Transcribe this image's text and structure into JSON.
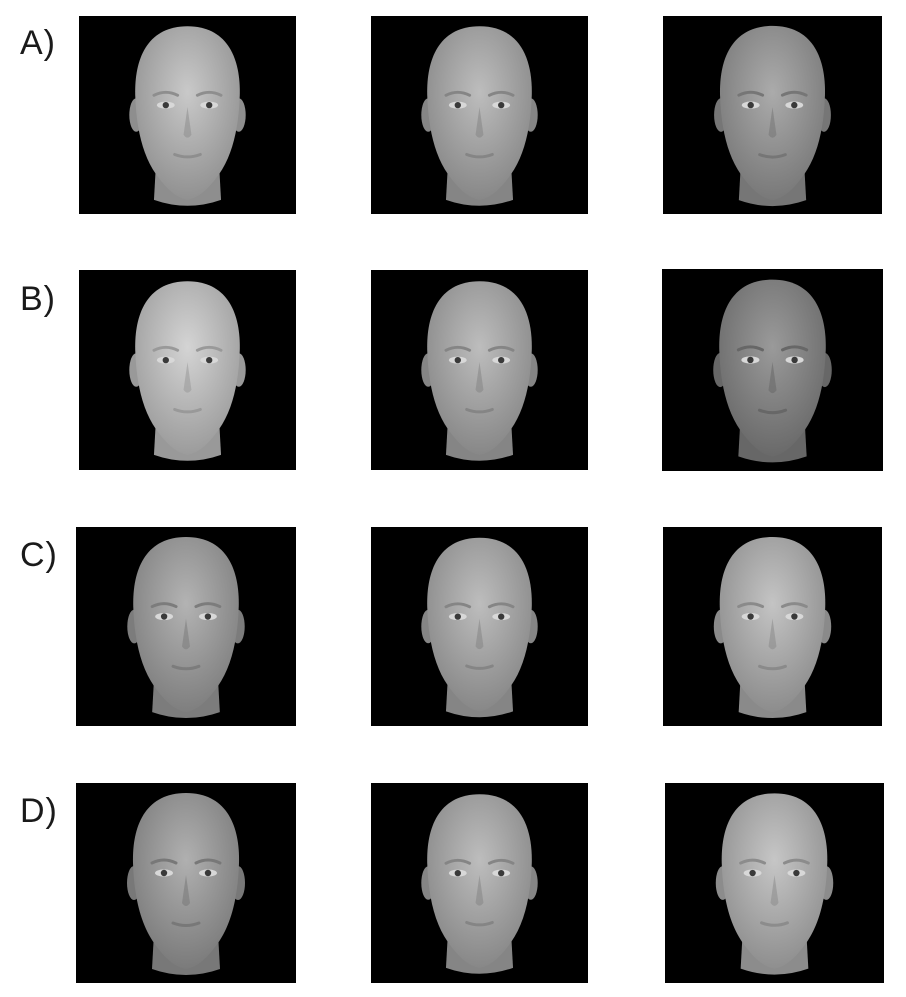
{
  "figure": {
    "rows": [
      {
        "label": "A)",
        "faces": [
          {
            "shade": "#c9c9c9",
            "shadow": "#8e8e8e"
          },
          {
            "shade": "#bdbdbd",
            "shadow": "#858585"
          },
          {
            "shade": "#ababab",
            "shadow": "#767676"
          }
        ]
      },
      {
        "label": "B)",
        "faces": [
          {
            "shade": "#d4d4d4",
            "shadow": "#999999"
          },
          {
            "shade": "#bdbdbd",
            "shadow": "#858585"
          },
          {
            "shade": "#9a9a9a",
            "shadow": "#676767"
          }
        ]
      },
      {
        "label": "C)",
        "faces": [
          {
            "shade": "#b3b3b3",
            "shadow": "#7c7c7c"
          },
          {
            "shade": "#bdbdbd",
            "shadow": "#858585"
          },
          {
            "shade": "#c4c4c4",
            "shadow": "#8a8a8a"
          }
        ]
      },
      {
        "label": "D)",
        "faces": [
          {
            "shade": "#b0b0b0",
            "shadow": "#787878"
          },
          {
            "shade": "#bdbdbd",
            "shadow": "#858585"
          },
          {
            "shade": "#c6c6c6",
            "shadow": "#8c8c8c"
          }
        ]
      }
    ]
  }
}
